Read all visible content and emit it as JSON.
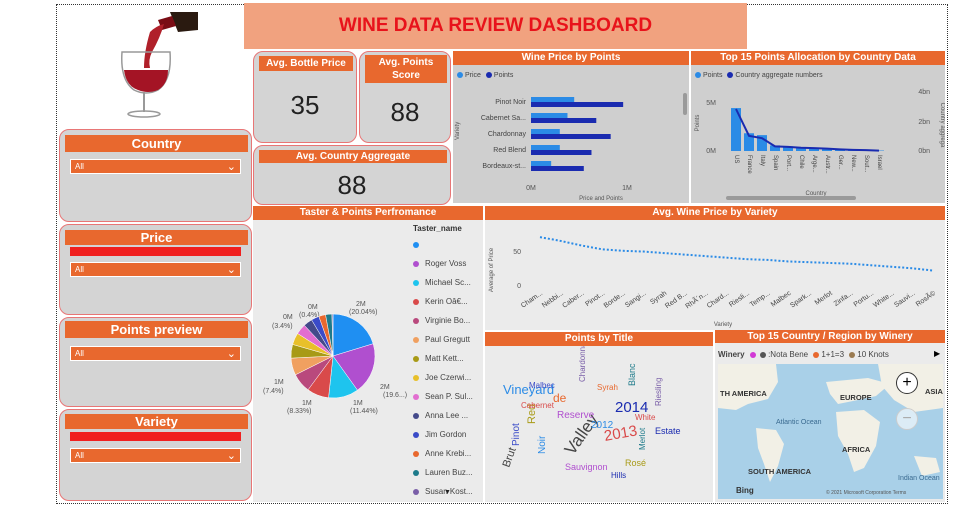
{
  "header": {
    "title": "WINE DATA REVIEW DASHBOARD"
  },
  "filters": {
    "country": {
      "label": "Country",
      "value": "All"
    },
    "price": {
      "label": "Price",
      "value": "All"
    },
    "points": {
      "label": "Points preview",
      "value": "All"
    },
    "variety": {
      "label": "Variety",
      "value": "All"
    }
  },
  "kpis": {
    "avg_bottle_price": {
      "label": "Avg. Bottle Price",
      "value": "35"
    },
    "avg_points_score": {
      "label": "Avg. Points Score",
      "value": "88"
    },
    "avg_country_aggregate": {
      "label": "Avg. Country Aggregate",
      "value": "88"
    }
  },
  "colors": {
    "accent": "#e8682e",
    "title_text": "#e8131b",
    "price_bar": "#2b8be6",
    "points_bar": "#1a2bb0",
    "redbar": "#f0201f"
  },
  "price_by_points": {
    "title": "Wine Price by Points",
    "legend": [
      "Price",
      "Points"
    ],
    "ylabel": "Variety",
    "xlabel": "Price and Points",
    "xticks": [
      "0M",
      "1M"
    ]
  },
  "top15_country": {
    "title": "Top 15 Points Allocation by Country Data",
    "legend": [
      "Points",
      "Country aggregate numbers"
    ],
    "ylabel": "Points",
    "y2label": "Country aggrega",
    "xlabel": "Country",
    "yticks": [
      "5M",
      "0M"
    ],
    "y2ticks": [
      "4bn",
      "2bn",
      "0bn"
    ]
  },
  "taster": {
    "title": "Taster & Points Perfromance",
    "legend_title": "Taster_name",
    "names": [
      "",
      "Roger Voss",
      "Michael Sc...",
      "Kerin Oâ€...",
      "Virginie Bo...",
      "Paul Gregutt",
      "Matt Kett...",
      "Joe Czerwi...",
      "Sean P. Sul...",
      "Anna Lee ...",
      "Jim Gordon",
      "Anne Krebi...",
      "Lauren Buz...",
      "Susan Kost..."
    ],
    "slice_labels": {
      "a": "2M",
      "a2": "(20.04%)",
      "b": "2M",
      "b2": "(19.6...)",
      "c": "1M",
      "c2": "(11.44%)",
      "d": "1M",
      "d2": "(8.33%)",
      "e": "1M",
      "e2": "(7.4%)",
      "f": "0M",
      "f2": "(3.4%)",
      "g": "0M",
      "g2": "(0.4%)"
    }
  },
  "avg_price_variety": {
    "title": "Avg. Wine Price by Variety",
    "ylabel": "Average of Price",
    "xlabel": "Variety",
    "yticks": [
      "50",
      "0"
    ]
  },
  "points_by_title": {
    "title": "Points by Title",
    "words": [
      "Vineyard",
      "2014",
      "2013",
      "Valley",
      "Red",
      "Reserve",
      "Blanc",
      "de",
      "Chardonnay",
      "Pinot",
      "Noir",
      "Estate",
      "Cabernet",
      "Brut",
      "Rosé",
      "Sauvignon",
      "Merlot",
      "Syrah",
      "Riesling",
      "Malbec",
      "2012",
      "Hills",
      "White"
    ]
  },
  "top15_winery": {
    "title": "Top 15 Country / Region by Winery",
    "legend_label": "Winery",
    "legend_items": [
      ":Nota Bene",
      "1+1=3",
      "10 Knots"
    ],
    "map_labels": [
      "TH AMERICA",
      "EUROPE",
      "ASIA",
      "Atlantic Ocean",
      "AFRICA",
      "SOUTH AMERICA",
      "Indian Ocean"
    ],
    "bing": "Bing",
    "copyright": "© 2021 Microsoft Corporation Terms"
  },
  "chart_data": [
    {
      "type": "bar",
      "title": "Wine Price by Points",
      "categories": [
        "Pinot Noir",
        "Cabernet Sa...",
        "Chardonnay",
        "Red Blend",
        "Bordeaux-st..."
      ],
      "series": [
        {
          "name": "Price",
          "values": [
            0.45,
            0.38,
            0.3,
            0.3,
            0.21
          ]
        },
        {
          "name": "Points",
          "values": [
            0.96,
            0.68,
            0.83,
            0.63,
            0.55
          ]
        }
      ],
      "xlabel": "Price and Points",
      "ylabel": "Variety",
      "xlim": [
        0,
        1.05
      ]
    },
    {
      "type": "bar",
      "title": "Top 15 Points Allocation by Country Data",
      "categories": [
        "US",
        "France",
        "Italy",
        "Spain",
        "Port...",
        "Chile",
        "Arge...",
        "Austr...",
        "Ger...",
        "New...",
        "Sout...",
        "Israel"
      ],
      "series": [
        {
          "name": "Points",
          "values": [
            4.6,
            1.9,
            1.7,
            0.6,
            0.5,
            0.4,
            0.35,
            0.3,
            0.2,
            0.15,
            0.12,
            0.05
          ]
        },
        {
          "name": "Country aggregate numbers",
          "values": [
            3.6,
            1.3,
            1.1,
            0.4,
            0.35,
            0.28,
            0.25,
            0.2,
            0.14,
            0.1,
            0.08,
            0.03
          ]
        }
      ],
      "xlabel": "Country",
      "ylabel": "Points",
      "ylim": [
        0,
        6
      ]
    },
    {
      "type": "pie",
      "title": "Taster & Points Perfromance",
      "categories": [
        "",
        "Roger Voss",
        "Michael Sc...",
        "Kerin Oâ€...",
        "Virginie Bo...",
        "Paul Gregutt",
        "Matt Kett...",
        "Joe Czerwi...",
        "Sean P. Sul...",
        "Anna Lee ...",
        "Jim Gordon",
        "Anne Krebi...",
        "Lauren Buz...",
        "Susan Kost..."
      ],
      "values": [
        20.04,
        19.6,
        11.44,
        8.33,
        7.4,
        6.5,
        5.2,
        4.5,
        4.0,
        3.4,
        3.0,
        2.6,
        2.4,
        0.4
      ],
      "colors": [
        "#1f8ff2",
        "#b04fcf",
        "#1ec4ee",
        "#d94a4a",
        "#b9497d",
        "#f0a060",
        "#a89a16",
        "#e8c02a",
        "#e26ed0",
        "#444a8a",
        "#3a4bc8",
        "#e8682e",
        "#1d7a8a",
        "#7a5fa8"
      ]
    },
    {
      "type": "line",
      "title": "Avg. Wine Price by Variety",
      "x": [
        "Cham...",
        "Nebbi...",
        "Caber...",
        "Pinot...",
        "Borde...",
        "Sangi...",
        "Syrah",
        "Red B...",
        "RhÃ´n...",
        "Chard...",
        "Riesli...",
        "Temp...",
        "Malbec",
        "Spark...",
        "Merlot",
        "Zinfa...",
        "Portu...",
        "White...",
        "Sauvi...",
        "RosÃ©"
      ],
      "y": [
        63,
        58,
        52,
        47,
        45,
        44,
        42,
        40,
        38,
        36,
        34,
        33,
        31,
        30,
        29,
        28,
        26,
        24,
        22,
        19
      ],
      "xlabel": "Variety",
      "ylabel": "Average of Price",
      "ylim": [
        0,
        75
      ]
    }
  ]
}
